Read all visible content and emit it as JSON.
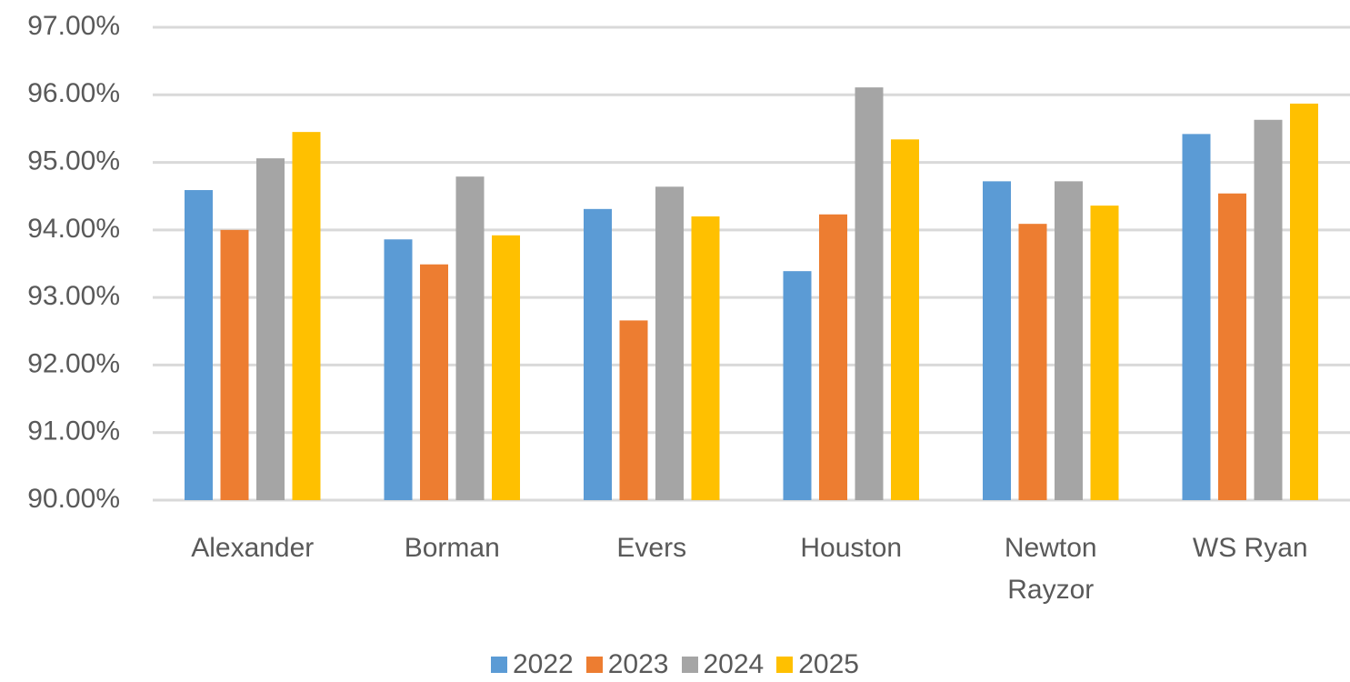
{
  "chart_data": {
    "type": "bar",
    "categories": [
      "Alexander",
      "Borman",
      "Evers",
      "Houston",
      "Newton Rayzor",
      "WS Ryan"
    ],
    "series": [
      {
        "name": "2022",
        "color": "#5b9bd5",
        "values": [
          94.59,
          93.86,
          94.31,
          93.39,
          94.72,
          95.42
        ]
      },
      {
        "name": "2023",
        "color": "#ed7d31",
        "values": [
          94.0,
          93.49,
          92.66,
          94.23,
          94.09,
          94.54
        ]
      },
      {
        "name": "2024",
        "color": "#a5a5a5",
        "values": [
          95.06,
          94.79,
          94.64,
          96.11,
          94.72,
          95.63
        ]
      },
      {
        "name": "2025",
        "color": "#ffc000",
        "values": [
          95.45,
          93.92,
          94.2,
          95.34,
          94.36,
          95.87
        ]
      }
    ],
    "ylim": [
      90,
      97
    ],
    "yticks": [
      {
        "value": 90,
        "label": "90.00%"
      },
      {
        "value": 91,
        "label": "91.00%"
      },
      {
        "value": 92,
        "label": "92.00%"
      },
      {
        "value": 93,
        "label": "93.00%"
      },
      {
        "value": 94,
        "label": "94.00%"
      },
      {
        "value": 95,
        "label": "95.00%"
      },
      {
        "value": 96,
        "label": "96.00%"
      },
      {
        "value": 97,
        "label": "97.00%"
      }
    ],
    "grid": true,
    "legend": "bottom"
  }
}
